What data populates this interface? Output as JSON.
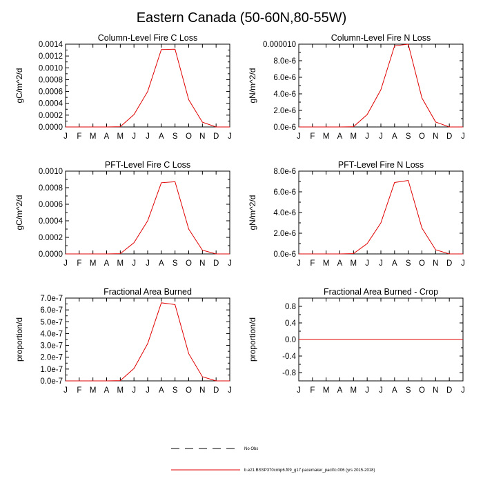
{
  "figure": {
    "title": "Eastern Canada (50-60N,80-55W)",
    "legend": [
      {
        "label": "No Obs",
        "color": "#000000",
        "dash": "dashed"
      },
      {
        "label": "b.e21.BSSP370cmip6.f09_g17.pacemaker_pacific.006 (yrs 2015-2018)",
        "color": "#e00000",
        "dash": "solid"
      }
    ]
  },
  "chart_data": [
    {
      "type": "line",
      "title": "Column-Level Fire C Loss",
      "ylabel": "gC/m^2/d",
      "categories": [
        "J",
        "F",
        "M",
        "A",
        "M",
        "J",
        "J",
        "A",
        "S",
        "O",
        "N",
        "D",
        "J"
      ],
      "ylim": [
        0,
        0.0014
      ],
      "yticks": [
        {
          "value": 0,
          "label": "0.0000"
        },
        {
          "value": 0.0002,
          "label": "0.0002"
        },
        {
          "value": 0.0004,
          "label": "0.0004"
        },
        {
          "value": 0.0006,
          "label": "0.0006"
        },
        {
          "value": 0.0008,
          "label": "0.0008"
        },
        {
          "value": 0.001,
          "label": "0.0010"
        },
        {
          "value": 0.0012,
          "label": "0.0012"
        },
        {
          "value": 0.0014,
          "label": "0.0014"
        }
      ],
      "series": [
        {
          "color": "#e00000",
          "values": [
            0,
            0,
            0,
            0,
            5e-06,
            0.00021,
            0.0006,
            0.00131,
            0.001315,
            0.00046,
            8e-05,
            0,
            0
          ]
        }
      ]
    },
    {
      "type": "line",
      "title": "Column-Level Fire N Loss",
      "ylabel": "gN/m^2/d",
      "categories": [
        "J",
        "F",
        "M",
        "A",
        "M",
        "J",
        "J",
        "A",
        "S",
        "O",
        "N",
        "D",
        "J"
      ],
      "ylim": [
        0,
        1e-05
      ],
      "yticks": [
        {
          "value": 0,
          "label": "0.0e-6"
        },
        {
          "value": 2e-06,
          "label": "2.0e-6"
        },
        {
          "value": 4e-06,
          "label": "4.0e-6"
        },
        {
          "value": 6e-06,
          "label": "6.0e-6"
        },
        {
          "value": 8e-06,
          "label": "8.0e-6"
        },
        {
          "value": 1e-05,
          "label": "0.000010"
        }
      ],
      "series": [
        {
          "color": "#e00000",
          "values": [
            0,
            0,
            0,
            0,
            3e-08,
            1.5e-06,
            4.5e-06,
            9.8e-06,
            1e-05,
            3.5e-06,
            6e-07,
            0,
            0
          ]
        }
      ]
    },
    {
      "type": "line",
      "title": "PFT-Level Fire C Loss",
      "ylabel": "gC/m^2/d",
      "categories": [
        "J",
        "F",
        "M",
        "A",
        "M",
        "J",
        "J",
        "A",
        "S",
        "O",
        "N",
        "D",
        "J"
      ],
      "ylim": [
        0,
        0.001
      ],
      "yticks": [
        {
          "value": 0,
          "label": "0.0000"
        },
        {
          "value": 0.0002,
          "label": "0.0002"
        },
        {
          "value": 0.0004,
          "label": "0.0004"
        },
        {
          "value": 0.0006,
          "label": "0.0006"
        },
        {
          "value": 0.0008,
          "label": "0.0008"
        },
        {
          "value": 0.001,
          "label": "0.0010"
        }
      ],
      "series": [
        {
          "color": "#e00000",
          "values": [
            0,
            0,
            0,
            0,
            3e-06,
            0.000135,
            0.0004,
            0.00086,
            0.000872,
            0.0003,
            4.5e-05,
            0,
            0
          ]
        }
      ]
    },
    {
      "type": "line",
      "title": "PFT-Level Fire N Loss",
      "ylabel": "gN/m^2/d",
      "categories": [
        "J",
        "F",
        "M",
        "A",
        "M",
        "J",
        "J",
        "A",
        "S",
        "O",
        "N",
        "D",
        "J"
      ],
      "ylim": [
        0,
        8e-06
      ],
      "yticks": [
        {
          "value": 0,
          "label": "0.0e-6"
        },
        {
          "value": 2e-06,
          "label": "2.0e-6"
        },
        {
          "value": 4e-06,
          "label": "4.0e-6"
        },
        {
          "value": 6e-06,
          "label": "6.0e-6"
        },
        {
          "value": 8e-06,
          "label": "8.0e-6"
        }
      ],
      "series": [
        {
          "color": "#e00000",
          "values": [
            0,
            0,
            0,
            0,
            3e-08,
            1e-06,
            3e-06,
            6.9e-06,
            7.1e-06,
            2.5e-06,
            4e-07,
            0,
            0
          ]
        }
      ]
    },
    {
      "type": "line",
      "title": "Fractional Area Burned",
      "ylabel": "proportion/d",
      "categories": [
        "J",
        "F",
        "M",
        "A",
        "M",
        "J",
        "J",
        "A",
        "S",
        "O",
        "N",
        "D",
        "J"
      ],
      "ylim": [
        0,
        7e-07
      ],
      "yticks": [
        {
          "value": 0,
          "label": "0.0e-7"
        },
        {
          "value": 1e-07,
          "label": "1.0e-7"
        },
        {
          "value": 2e-07,
          "label": "2.0e-7"
        },
        {
          "value": 3e-07,
          "label": "3.0e-7"
        },
        {
          "value": 4e-07,
          "label": "4.0e-7"
        },
        {
          "value": 5e-07,
          "label": "5.0e-7"
        },
        {
          "value": 6e-07,
          "label": "6.0e-7"
        },
        {
          "value": 7e-07,
          "label": "7.0e-7"
        }
      ],
      "series": [
        {
          "color": "#e00000",
          "values": [
            0,
            0,
            0,
            0,
            2e-09,
            1.05e-07,
            3.15e-07,
            6.6e-07,
            6.45e-07,
            2.3e-07,
            3.5e-08,
            0,
            0
          ]
        }
      ]
    },
    {
      "type": "line",
      "title": "Fractional Area Burned - Crop",
      "ylabel": "proportion/d",
      "categories": [
        "J",
        "F",
        "M",
        "A",
        "M",
        "J",
        "J",
        "A",
        "S",
        "O",
        "N",
        "D",
        "J"
      ],
      "ylim": [
        -1,
        1
      ],
      "yticks": [
        {
          "value": -0.8,
          "label": "-0.8"
        },
        {
          "value": -0.4,
          "label": "-0.4"
        },
        {
          "value": 0,
          "label": "0.0"
        },
        {
          "value": 0.4,
          "label": "0.4"
        },
        {
          "value": 0.8,
          "label": "0.8"
        }
      ],
      "series": [
        {
          "color": "#e00000",
          "values": [
            0,
            0,
            0,
            0,
            0,
            0,
            0,
            0,
            0,
            0,
            0,
            0,
            0
          ]
        }
      ]
    }
  ]
}
